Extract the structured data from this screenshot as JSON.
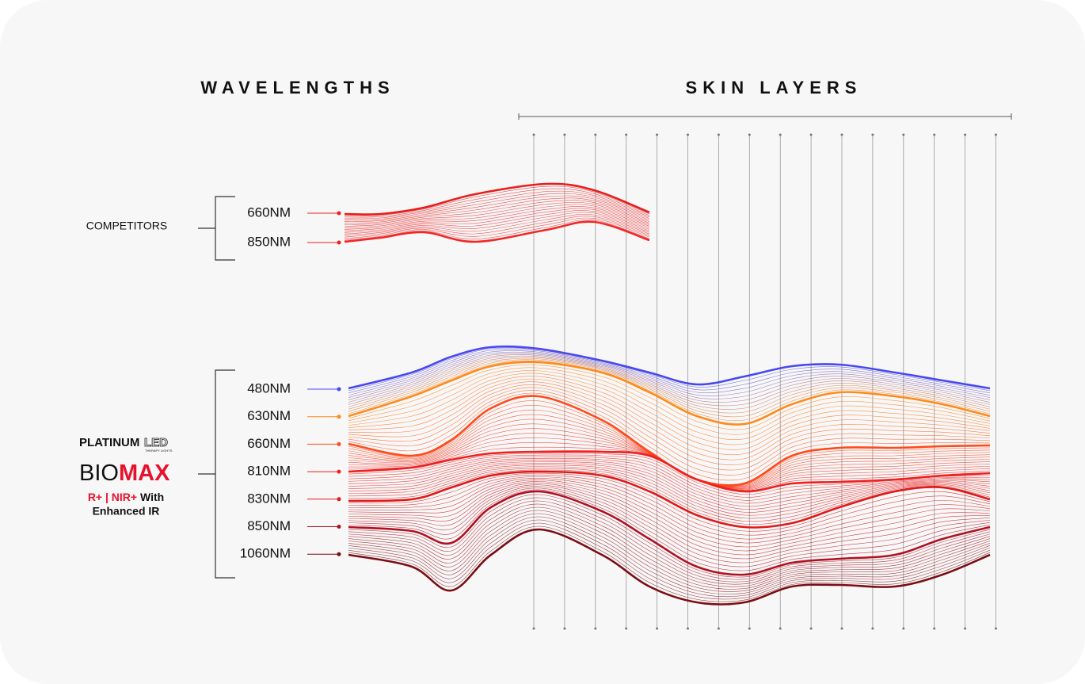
{
  "header": {
    "wavelengths": "WAVELENGTHS",
    "skin_layers": "SKIN LAYERS"
  },
  "competitors": {
    "label": "COMPETITORS",
    "wavelengths": [
      "660NM",
      "850NM"
    ]
  },
  "biomax": {
    "brand": "PLATINUM",
    "brand_mark": "LED",
    "brand_sub": "THERAPY LIGHTS",
    "product_a": "BIO",
    "product_b": "MAX",
    "features_a": "R+ | NIR+",
    "features_b": "With",
    "features_c": "Enhanced IR",
    "wavelengths": [
      "480NM",
      "630NM",
      "660NM",
      "810NM",
      "830NM",
      "850NM",
      "1060NM"
    ]
  }
}
